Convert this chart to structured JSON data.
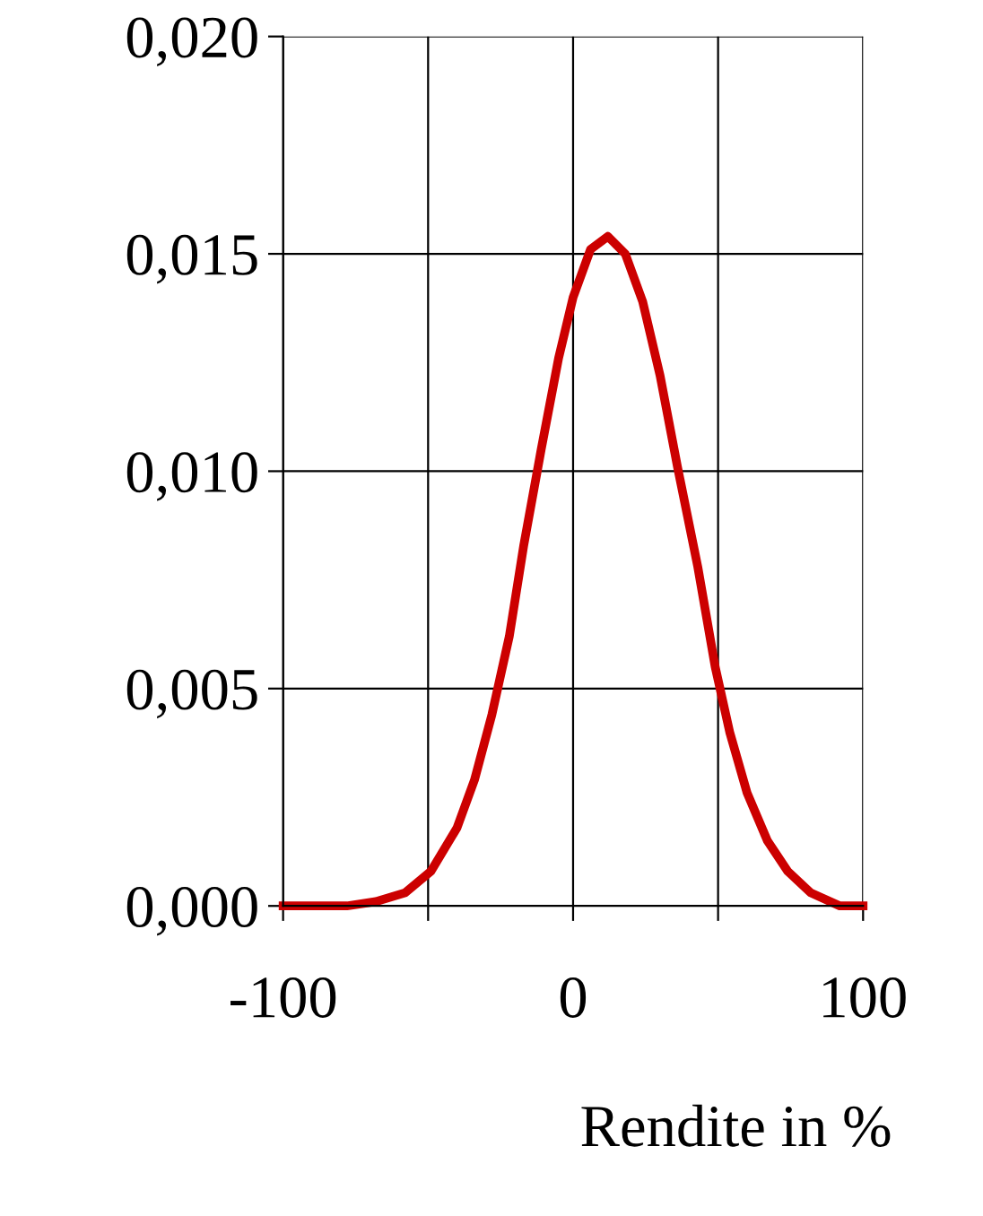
{
  "chart_data": {
    "type": "line",
    "xlabel": "Rendite in %",
    "x": [
      -100,
      -78,
      -68,
      -58,
      -49,
      -40,
      -34,
      -28,
      -22,
      -17,
      -11,
      -5,
      0,
      6,
      12,
      18,
      24,
      30,
      36,
      43,
      49,
      54,
      60,
      67,
      74,
      82,
      92,
      100
    ],
    "series": [
      {
        "color": "#cc0000",
        "values": [
          0,
          0,
          0.0001,
          0.0003,
          0.0008,
          0.0018,
          0.0029,
          0.0044,
          0.0062,
          0.0083,
          0.0105,
          0.0126,
          0.014,
          0.0151,
          0.0154,
          0.015,
          0.0139,
          0.0122,
          0.0101,
          0.0078,
          0.0055,
          0.004,
          0.0026,
          0.0015,
          0.0008,
          0.0003,
          0,
          0
        ]
      }
    ],
    "xlim": [
      -100,
      100
    ],
    "xticks": [
      -100,
      {
        "value": -50,
        "label": null
      },
      0,
      {
        "value": 50,
        "label": null
      },
      100
    ],
    "ylim": [
      0,
      0.02
    ],
    "yticks": [
      {
        "value": 0,
        "label": "0,000"
      },
      {
        "value": 0.005,
        "label": "0,005"
      },
      {
        "value": 0.01,
        "label": "0,010"
      },
      {
        "value": 0.015,
        "label": "0,015"
      },
      {
        "value": 0.02,
        "label": "0,020"
      }
    ],
    "grid": true,
    "legend": false,
    "marker": "none",
    "line_style": "solid"
  }
}
